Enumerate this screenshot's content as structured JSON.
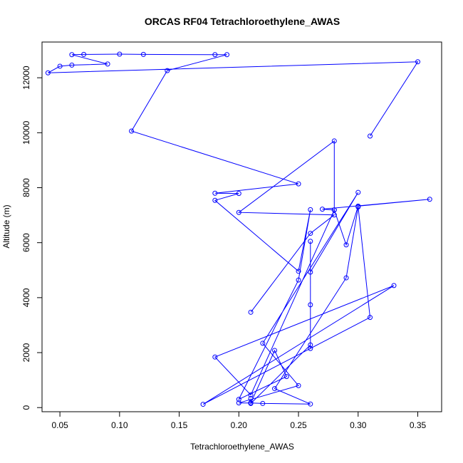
{
  "chart_data": {
    "type": "line",
    "title": "ORCAS RF04 Tetrachloroethylene_AWAS",
    "xlabel": "Tetrachloroethylene_AWAS",
    "ylabel": "Altitude (m)",
    "xlim": [
      0.035,
      0.37
    ],
    "ylim": [
      -150,
      13300
    ],
    "x_ticks": [
      0.05,
      0.1,
      0.15,
      0.2,
      0.25,
      0.3,
      0.35
    ],
    "x_tick_labels": [
      "0.05",
      "0.10",
      "0.15",
      "0.20",
      "0.25",
      "0.30",
      "0.35"
    ],
    "y_ticks": [
      0,
      2000,
      4000,
      6000,
      8000,
      10000,
      12000
    ],
    "y_tick_labels": [
      "0",
      "2000",
      "4000",
      "6000",
      "8000",
      "10000",
      "12000"
    ],
    "grid": false,
    "series": [
      {
        "color": "#0000ff",
        "marker": "open-circle",
        "points": [
          [
            0.31,
            9880
          ],
          [
            0.35,
            12580
          ],
          [
            0.04,
            12180
          ],
          [
            0.05,
            12420
          ],
          [
            0.06,
            12460
          ],
          [
            0.09,
            12500
          ],
          [
            0.06,
            12840
          ],
          [
            0.07,
            12850
          ],
          [
            0.1,
            12860
          ],
          [
            0.12,
            12850
          ],
          [
            0.18,
            12840
          ],
          [
            0.19,
            12840
          ],
          [
            0.14,
            12260
          ],
          [
            0.11,
            10060
          ],
          [
            0.25,
            8140
          ],
          [
            0.18,
            7800
          ],
          [
            0.2,
            7790
          ],
          [
            0.18,
            7540
          ],
          [
            0.25,
            4960
          ],
          [
            0.26,
            7200
          ],
          [
            0.25,
            4640
          ],
          [
            0.2,
            300
          ],
          [
            0.24,
            1130
          ],
          [
            0.23,
            2080
          ],
          [
            0.21,
            170
          ],
          [
            0.21,
            330
          ],
          [
            0.21,
            150
          ],
          [
            0.26,
            2280
          ],
          [
            0.26,
            6050
          ],
          [
            0.26,
            2150
          ],
          [
            0.26,
            3740
          ],
          [
            0.26,
            4930
          ],
          [
            0.3,
            7830
          ],
          [
            0.22,
            2340
          ],
          [
            0.25,
            800
          ],
          [
            0.2,
            170
          ],
          [
            0.21,
            170
          ],
          [
            0.22,
            150
          ],
          [
            0.26,
            130
          ],
          [
            0.23,
            690
          ],
          [
            0.29,
            4720
          ],
          [
            0.3,
            7300
          ],
          [
            0.31,
            3280
          ],
          [
            0.17,
            120
          ],
          [
            0.33,
            4440
          ],
          [
            0.18,
            1840
          ],
          [
            0.21,
            460
          ],
          [
            0.28,
            7190
          ],
          [
            0.29,
            5920
          ],
          [
            0.3,
            7330
          ],
          [
            0.36,
            7580
          ],
          [
            0.27,
            7220
          ],
          [
            0.28,
            7190
          ],
          [
            0.28,
            9700
          ],
          [
            0.2,
            7100
          ],
          [
            0.28,
            7010
          ],
          [
            0.26,
            6340
          ],
          [
            0.21,
            3470
          ]
        ]
      }
    ]
  }
}
